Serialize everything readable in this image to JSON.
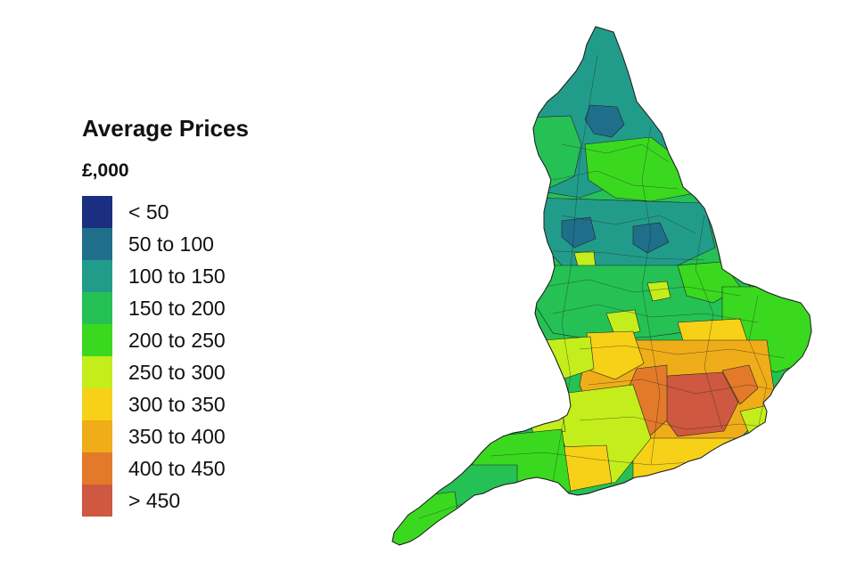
{
  "legend": {
    "title": "Average Prices",
    "unit": "£,000",
    "classes": [
      {
        "label": "< 50",
        "color": "#1a2f7f"
      },
      {
        "label": "50 to 100",
        "color": "#1f6f8b"
      },
      {
        "label": "100 to 150",
        "color": "#229c8a"
      },
      {
        "label": "150 to 200",
        "color": "#25c155"
      },
      {
        "label": "200 to 250",
        "color": "#3ad91f"
      },
      {
        "label": "250 to 300",
        "color": "#c3ee1b"
      },
      {
        "label": "300 to 350",
        "color": "#f7d117"
      },
      {
        "label": "350 to 400",
        "color": "#efad19"
      },
      {
        "label": "400 to 450",
        "color": "#e37a2a"
      },
      {
        "label": "> 450",
        "color": "#cf5840"
      }
    ]
  },
  "map": {
    "region": "England",
    "boundary_color": "#222222"
  }
}
